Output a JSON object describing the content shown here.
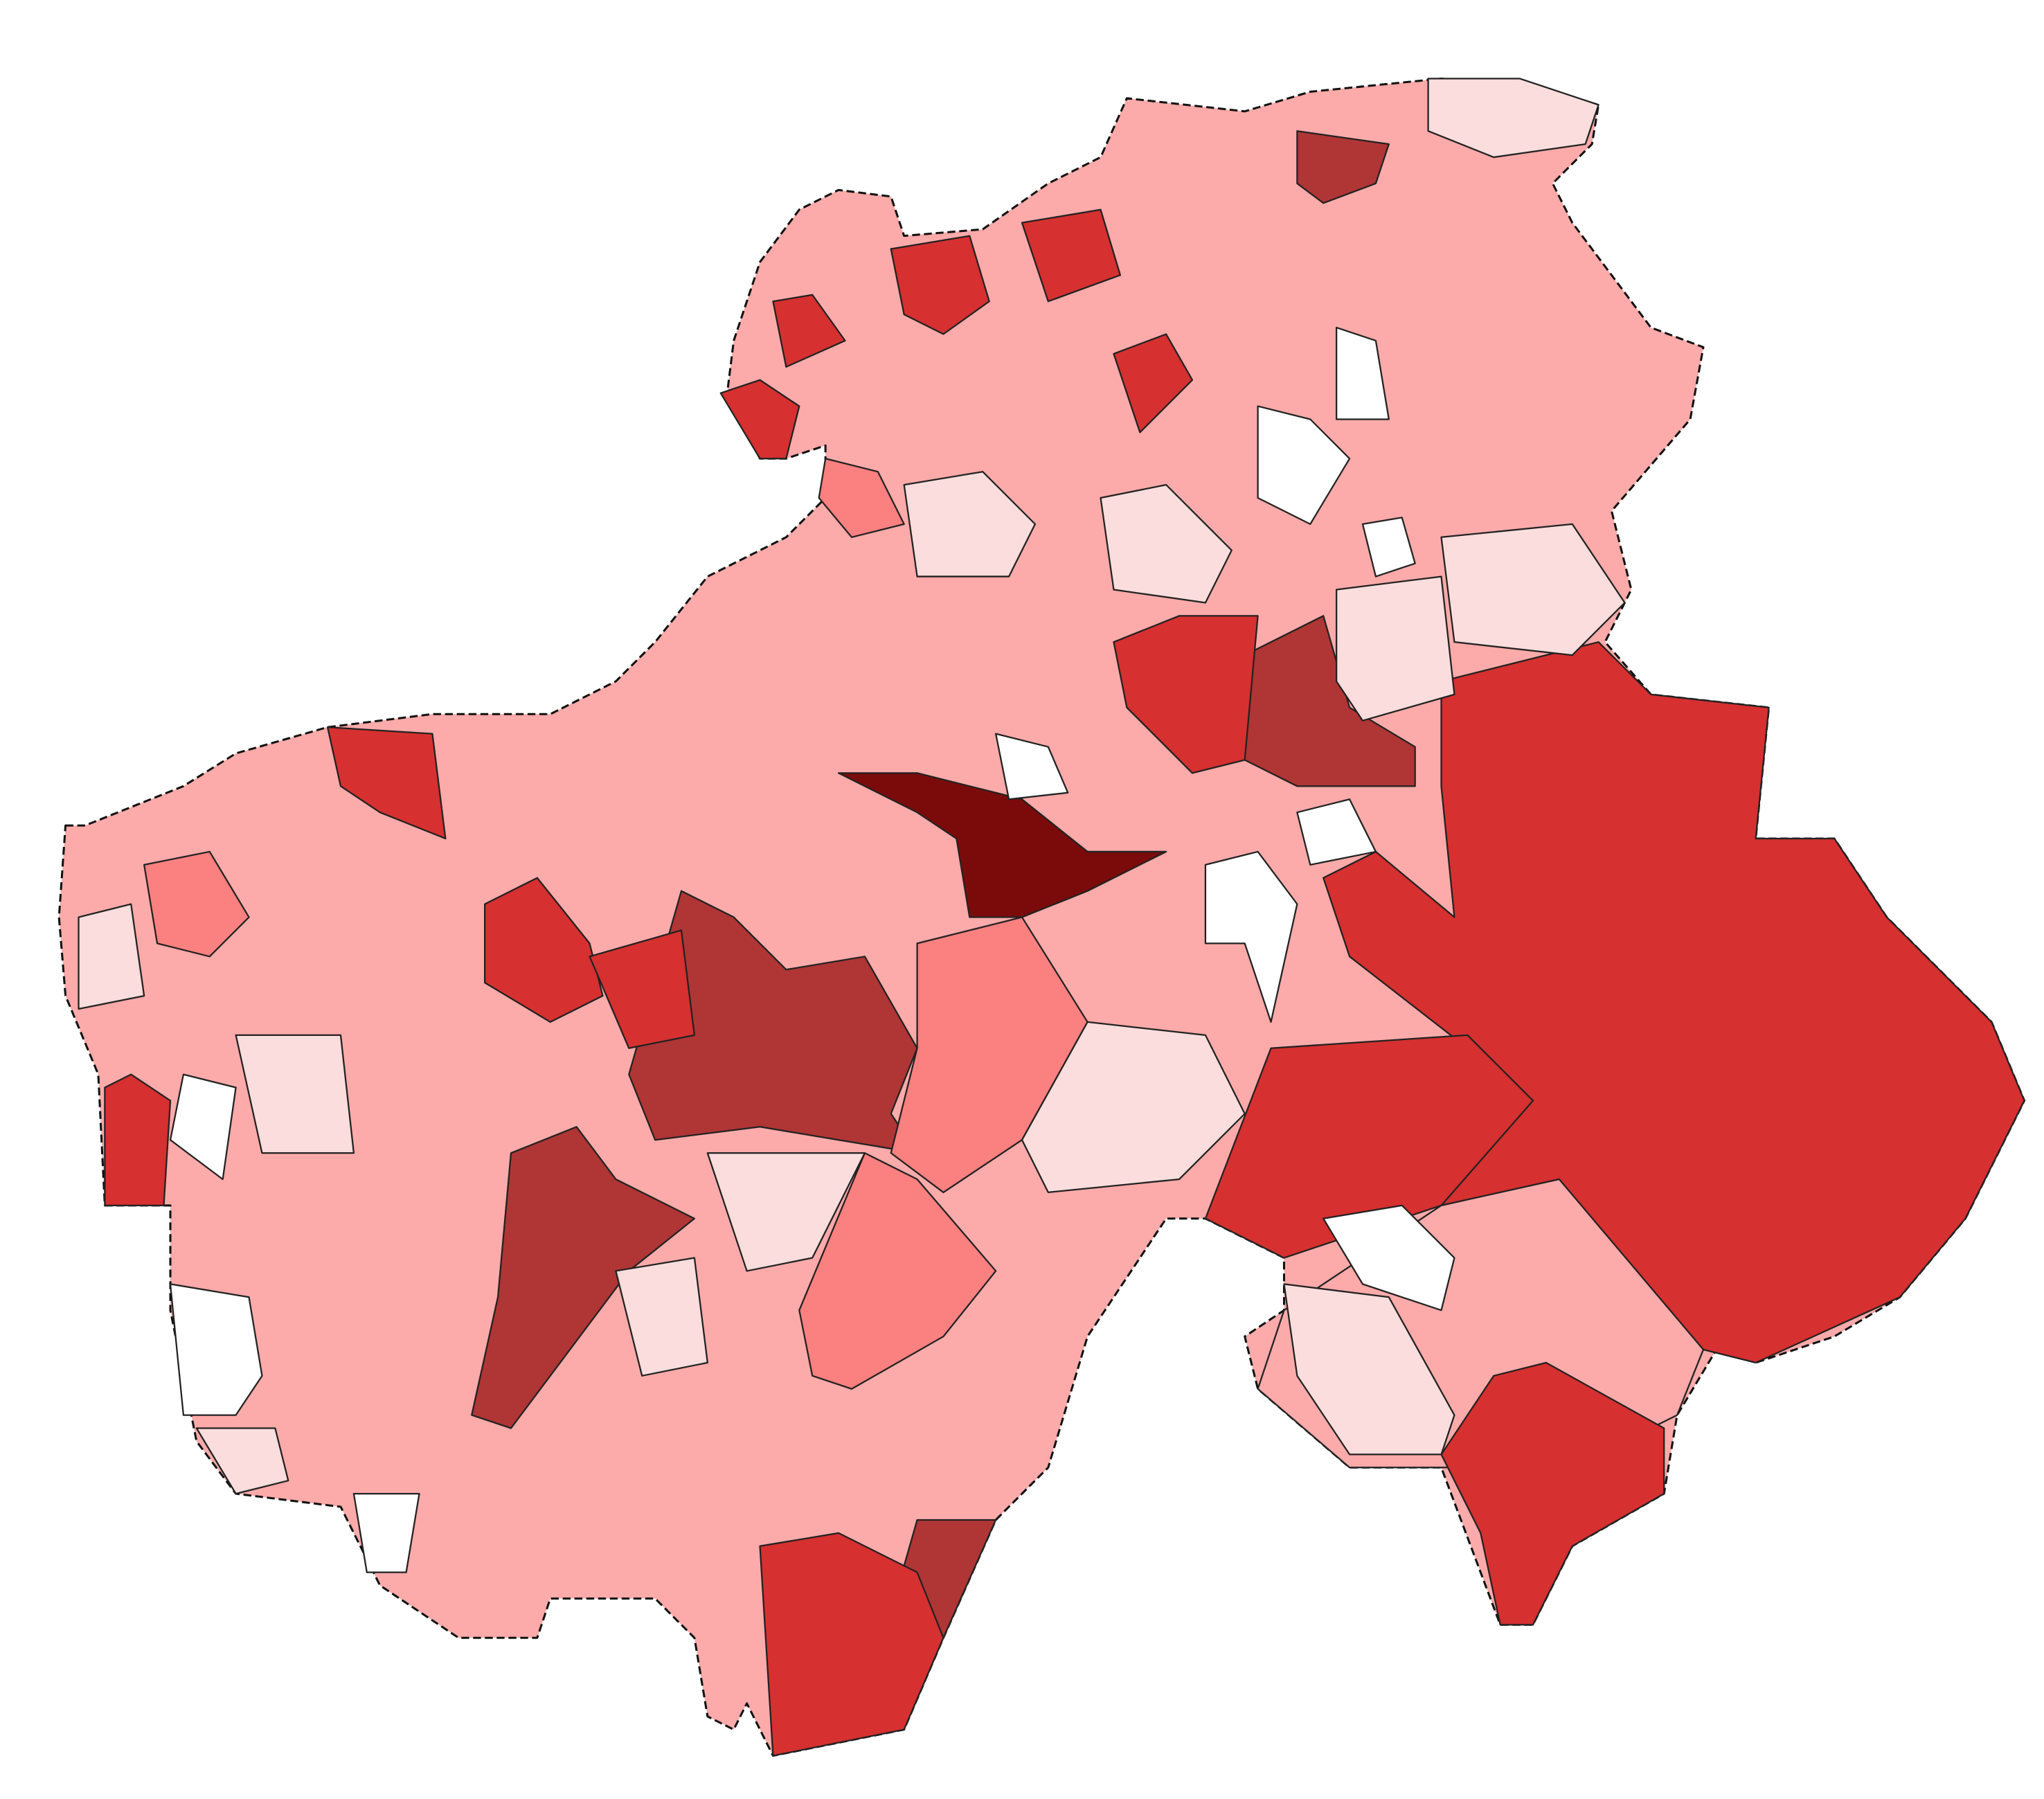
{
  "map": {
    "type": "choropleth",
    "palette": [
      "#ffffff",
      "#fbdddd",
      "#fcaaaa",
      "#fb8080",
      "#d63030",
      "#b03535",
      "#7b0b0b"
    ],
    "border_color": "#222222",
    "background": "#ffffff"
  }
}
